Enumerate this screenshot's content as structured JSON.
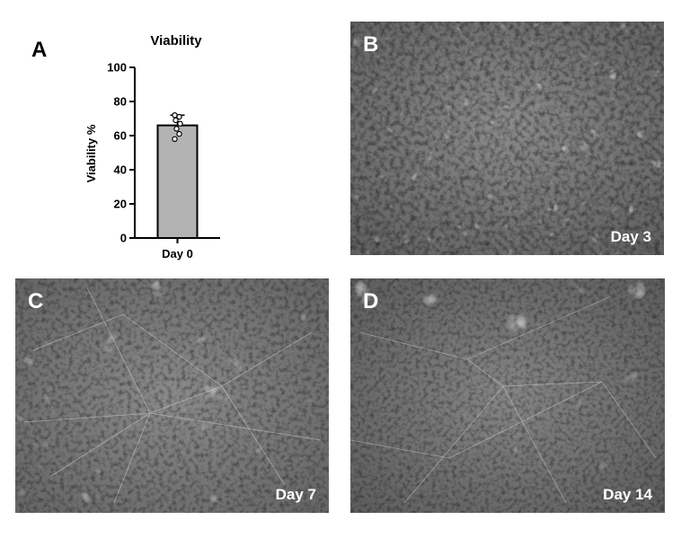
{
  "panels": {
    "a": {
      "letter": "A"
    },
    "b": {
      "letter": "B",
      "day": "Day 3"
    },
    "c": {
      "letter": "C",
      "day": "Day 7"
    },
    "d": {
      "letter": "D",
      "day": "Day 14"
    }
  },
  "chart_data": {
    "type": "bar",
    "title": "Viability",
    "ylabel": "Viability %",
    "xlabel": "",
    "categories": [
      "Day 0"
    ],
    "values": [
      66
    ],
    "error": [
      6
    ],
    "points": [
      72,
      71,
      69,
      67,
      64,
      61,
      58
    ],
    "ylim": [
      0,
      100
    ],
    "yticks": [
      0,
      20,
      40,
      60,
      80,
      100
    ],
    "bar_color": "#b3b3b3",
    "grid": false
  }
}
